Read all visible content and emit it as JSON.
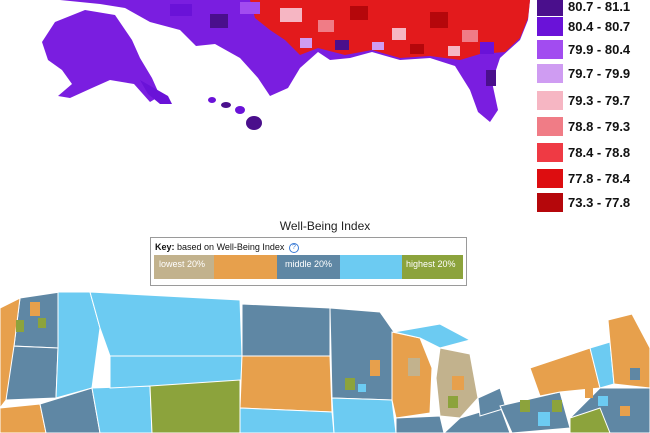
{
  "top_legend": {
    "items": [
      {
        "label": "80.7 - 81.1",
        "color": "#4a0f8c"
      },
      {
        "label": "80.4 - 80.7",
        "color": "#6a12d8"
      },
      {
        "label": "79.9 - 80.4",
        "color": "#a24cf0"
      },
      {
        "label": "79.7 - 79.9",
        "color": "#cf9cf2"
      },
      {
        "label": "79.3 - 79.7",
        "color": "#f6b6c3"
      },
      {
        "label": "78.8 - 79.3",
        "color": "#f07c86"
      },
      {
        "label": "78.4 - 78.8",
        "color": "#ef3a44"
      },
      {
        "label": "77.8 - 78.4",
        "color": "#dd0d10"
      },
      {
        "label": "73.3 - 77.8",
        "color": "#b5070b"
      }
    ]
  },
  "well_being": {
    "title": "Well-Being Index",
    "key_label": "Key:",
    "key_text": "based on Well-Being Index",
    "info_icon": "?",
    "segments": [
      {
        "label": "lowest 20%",
        "color": "#c2b28d"
      },
      {
        "label": "",
        "color": "#e7a04c"
      },
      {
        "label": "middle 20%",
        "color": "#5f87a4"
      },
      {
        "label": "",
        "color": "#6ccbf2"
      },
      {
        "label": "highest 20%",
        "color": "#8ca33c"
      }
    ]
  },
  "colors": {
    "water": "#ffffff",
    "purple_dark": "#4a0f8c",
    "purple": "#6a12d8",
    "red": "#dd0d10",
    "tan": "#c2b28d",
    "orange": "#e7a04c",
    "steel": "#5f87a4",
    "sky": "#6ccbf2",
    "olive": "#8ca33c"
  }
}
